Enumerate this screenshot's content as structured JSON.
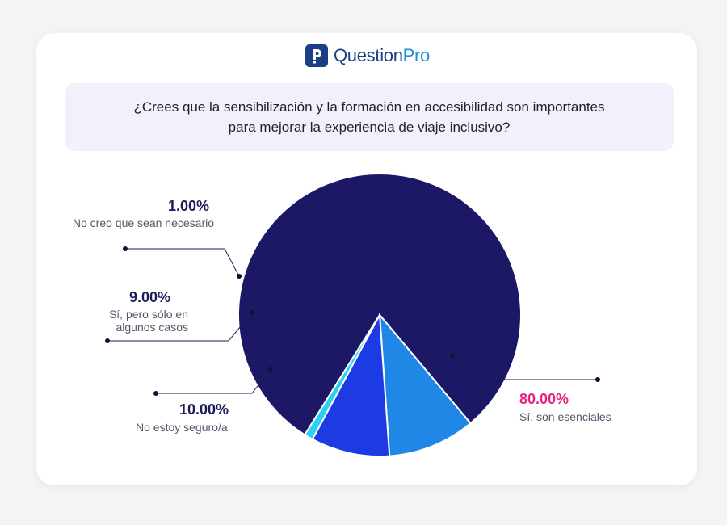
{
  "brand": {
    "name_main": "Question",
    "name_accent": "Pro",
    "icon": "questionpro-logo-icon"
  },
  "question": "¿Crees que la sensibilización y la formación en accesibilidad son importantes para mejorar la experiencia de viaje inclusivo?",
  "chart_data": {
    "type": "pie",
    "title": "¿Crees que la sensibilización y la formación en accesibilidad son importantes para mejorar la experiencia de viaje inclusivo?",
    "slices": [
      {
        "label": "Sí, son esenciales",
        "value": 80.0,
        "display": "80.00%",
        "color": "#1c1866"
      },
      {
        "label": "No estoy seguro/a",
        "value": 10.0,
        "display": "10.00%",
        "color": "#1f87e5"
      },
      {
        "label": "Sí, pero sólo en algunos casos",
        "value": 9.0,
        "display": "9.00%",
        "color": "#1d3be2"
      },
      {
        "label": "No creo que sean necesario",
        "value": 1.0,
        "display": "1.00%",
        "color": "#2ad1f2"
      }
    ],
    "legend": "callout-labels",
    "accent_color": "#e5247f"
  }
}
